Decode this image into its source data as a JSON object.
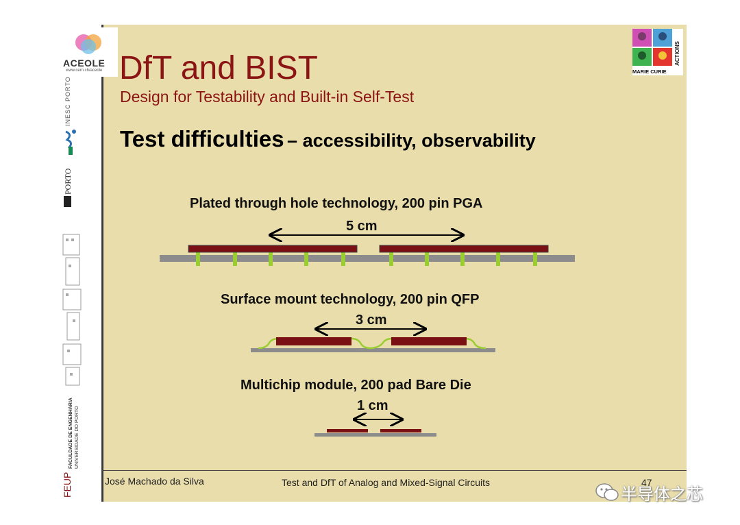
{
  "slide": {
    "title": "DfT and BIST",
    "subtitle": "Design for Testability and Built-in Self-Test",
    "heading_main": "Test difficulties",
    "heading_rest": "– accessibility, observability"
  },
  "sections": [
    {
      "caption": "Plated through hole technology, 200 pin PGA",
      "dimension": "5 cm"
    },
    {
      "caption": "Surface mount technology, 200 pin QFP",
      "dimension": "3 cm"
    },
    {
      "caption": "Multichip module, 200 pad Bare Die",
      "dimension": "1 cm"
    }
  ],
  "logos": {
    "aceole": "ACEOLE",
    "aceole_url": "www.cern.ch/aceole",
    "inesc": "INESC PORTO",
    "uporto": "PORTO",
    "feup_name": "FEUP",
    "feup_line1": "FACULDADE DE ENGENHARIA",
    "feup_line2": "UNIVERSIDADE DO PORTO",
    "marie_curie": "MARIE CURIE",
    "actions": "ACTIONS"
  },
  "footer": {
    "author": "José Machado da Silva",
    "course": "Test and DfT of Analog and Mixed-Signal Circuits",
    "page": "47"
  },
  "watermark": {
    "text": "半导体之芯"
  },
  "colors": {
    "background": "#e9ddab",
    "title": "#8b1414",
    "chip": "#7a0f14",
    "board": "#8c8c8c",
    "pin": "#9acd32"
  }
}
